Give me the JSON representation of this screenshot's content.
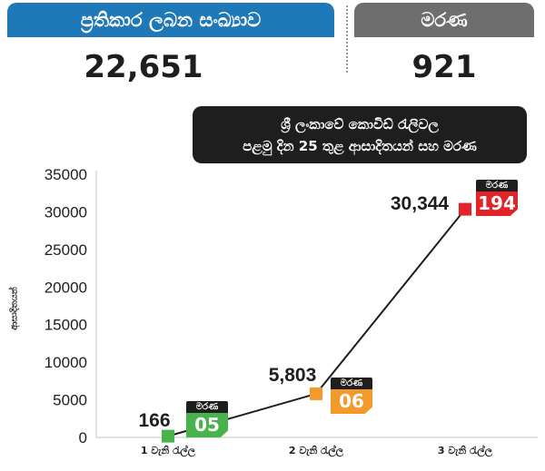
{
  "stats": {
    "recovered_label": "ප්‍රතිකාර ලබන සංඛ්‍යාව",
    "recovered_value": "22,651",
    "deaths_label": "මරණ",
    "deaths_value": "921"
  },
  "chart_data": {
    "type": "line",
    "title": "ශ්‍රී ලංකාවේ කොවිඩ් රැලිවල\nපළමු දින 25 තුළ ආසාදිතයන් සහ මරණ",
    "title_line1": "ශ්‍රී ලංකාවේ කොවිඩ් රැලිවල",
    "title_line2": "පළමු දින 25 තුළ ආසාදිතයන් සහ මරණ",
    "xlabel": "",
    "ylabel": "ආසාදිතයන්",
    "categories": [
      "1 වැනි රැල්ල",
      "2 වැනි රැල්ල",
      "3 වැනි රැල්ල"
    ],
    "series": [
      {
        "values": [
          166,
          5803,
          30344
        ],
        "point_labels": [
          "166",
          "5,803",
          "30,344"
        ],
        "point_colors": [
          "#48b24c",
          "#f39a2a",
          "#e2232a"
        ]
      }
    ],
    "deaths": {
      "caption": "මරණ",
      "values": [
        "05",
        "06",
        "194"
      ]
    },
    "ylim": [
      0,
      35000
    ],
    "yticks": [
      0,
      5000,
      10000,
      15000,
      20000,
      25000,
      30000,
      35000
    ],
    "grid": false,
    "legend": "none"
  }
}
